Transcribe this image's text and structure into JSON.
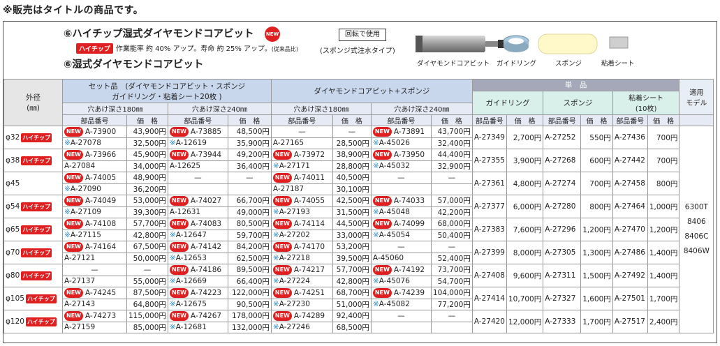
{
  "notice": "※販売はタイトルの商品です。",
  "header": {
    "title1": "⑥ハイチップ湿式ダイヤモンドコアビット",
    "new_badge": "NEW",
    "rotate_label": "回転で使用",
    "hc_label": "ハイチップ",
    "subtitle": "作業能率 約 40% アップ。寿命 約 25% アップ。",
    "subtitle_note": "(従来品比)",
    "sponge_note": "(スポンジ式注水タイプ)",
    "title2": "⑥湿式ダイヤモンドコアビット",
    "images": [
      "ダイヤモンドコアビット",
      "ガイドリング",
      "スポンジ",
      "粘着シート"
    ]
  },
  "table": {
    "h_outer": "外径",
    "h_outer_unit": "(㎜)",
    "h_set": "セット品",
    "h_set_desc1": "(ダイヤモンドコアビット・スポンジ",
    "h_set_desc2": "ガイドリング・粘着シート20枚 )",
    "h_dia_sponge": "ダイヤモンドコアビット+スポンジ",
    "h_single": "単　品",
    "h_guide": "ガイドリング",
    "h_sponge": "スポンジ",
    "h_sheet1": "粘着シート",
    "h_sheet2": "(10枚)",
    "h_model1": "適用",
    "h_model2": "モデル",
    "h_depth180": "穴あけ深さ180㎜",
    "h_depth240": "穴あけ深さ240㎜",
    "h_part": "部品番号",
    "h_price": "価　格",
    "models": [
      "6300T",
      "8406",
      "8406C",
      "8406W"
    ],
    "rows": [
      {
        "dia": "φ32",
        "hc": "ハイチップ",
        "a": [
          [
            "NEW",
            "A-73900",
            "43,900円"
          ],
          [
            "NEW",
            "A-73885",
            "48,500円"
          ],
          [
            "",
            "—",
            "—"
          ],
          [
            "NEW",
            "A-73891",
            "43,700円"
          ]
        ],
        "b": [
          [
            "※",
            "A-27078",
            "32,500円"
          ],
          [
            "※",
            "A-12619",
            "35,900円"
          ],
          [
            "",
            "A-27165",
            "28,500円"
          ],
          [
            "※",
            "A-45026",
            "32,400円"
          ]
        ],
        "single": [
          "A-27349",
          "2,700円",
          "A-27252",
          "550円",
          "A-27436",
          "700円"
        ]
      },
      {
        "dia": "φ38",
        "hc": "ハイチップ",
        "a": [
          [
            "NEW",
            "A-73966",
            "45,900円"
          ],
          [
            "NEW",
            "A-73944",
            "49,200円"
          ],
          [
            "NEW",
            "A-73972",
            "38,900円"
          ],
          [
            "NEW",
            "A-73950",
            "44,400円"
          ]
        ],
        "b": [
          [
            "",
            "A-27084",
            "34,000円"
          ],
          [
            "",
            "A-12625",
            "36,400円"
          ],
          [
            "※",
            "A-27171",
            "28,800円"
          ],
          [
            "※",
            "A-45032",
            "32,900円"
          ]
        ],
        "single": [
          "A-27355",
          "3,900円",
          "A-27268",
          "600円",
          "A-27442",
          "700円"
        ]
      },
      {
        "dia": "φ45",
        "hc": "",
        "a": [
          [
            "NEW",
            "A-74005",
            "48,900円"
          ],
          [
            "",
            "—",
            "—"
          ],
          [
            "NEW",
            "A-74011",
            "40,500円"
          ],
          [
            "",
            "—",
            "—"
          ]
        ],
        "b": [
          [
            "※",
            "A-27090",
            "36,200円"
          ],
          [
            "",
            "",
            ""
          ],
          [
            "",
            "A-27187",
            "30,100円"
          ],
          [
            "",
            "",
            ""
          ]
        ],
        "single": [
          "A-27361",
          "4,800円",
          "A-27274",
          "700円",
          "A-27458",
          "800円"
        ]
      },
      {
        "dia": "φ54",
        "hc": "ハイチップ",
        "a": [
          [
            "NEW",
            "A-74049",
            "53,000円"
          ],
          [
            "NEW",
            "A-74027",
            "66,700円"
          ],
          [
            "NEW",
            "A-74055",
            "42,500円"
          ],
          [
            "NEW",
            "A-74033",
            "57,000円"
          ]
        ],
        "b": [
          [
            "※",
            "A-27109",
            "39,300円"
          ],
          [
            "",
            "A-12631",
            "49,000円"
          ],
          [
            "※",
            "A-27193",
            "31,500円"
          ],
          [
            "※",
            "A-45048",
            "42,200円"
          ]
        ],
        "single": [
          "A-27377",
          "6,000円",
          "A-27280",
          "800円",
          "A-27464",
          "1,000円"
        ]
      },
      {
        "dia": "φ65",
        "hc": "ハイチップ",
        "a": [
          [
            "NEW",
            "A-74108",
            "57,700円"
          ],
          [
            "NEW",
            "A-74083",
            "80,500円"
          ],
          [
            "NEW",
            "A-74114",
            "44,500円"
          ],
          [
            "NEW",
            "A-74099",
            "68,000円"
          ]
        ],
        "b": [
          [
            "※",
            "A-27115",
            "42,800円"
          ],
          [
            "※",
            "A-12647",
            "59,700円"
          ],
          [
            "※",
            "A-27202",
            "33,000円"
          ],
          [
            "※",
            "A-45054",
            "50,400円"
          ]
        ],
        "single": [
          "A-27383",
          "7,600円",
          "A-27296",
          "1,200円",
          "A-27470",
          "1,200円"
        ]
      },
      {
        "dia": "φ70",
        "hc": "ハイチップ",
        "a": [
          [
            "NEW",
            "A-74164",
            "67,500円"
          ],
          [
            "NEW",
            "A-74142",
            "84,200円"
          ],
          [
            "NEW",
            "A-74170",
            "53,200円"
          ],
          [
            "",
            "—",
            "—"
          ]
        ],
        "b": [
          [
            "",
            "A-27121",
            "50,000円"
          ],
          [
            "※",
            "A-12653",
            "62,500円"
          ],
          [
            "※",
            "A-27218",
            "39,500円"
          ],
          [
            "",
            "A-45060",
            "52,400円"
          ]
        ],
        "single": [
          "A-27399",
          "8,000円",
          "A-27305",
          "1,300円",
          "A-27486",
          "1,400円"
        ]
      },
      {
        "dia": "φ80",
        "hc": "ハイチップ",
        "a": [
          [
            "",
            "—",
            "—"
          ],
          [
            "NEW",
            "A-74186",
            "89,500円"
          ],
          [
            "NEW",
            "A-74217",
            "57,700円"
          ],
          [
            "NEW",
            "A-74192",
            "73,700円"
          ]
        ],
        "b": [
          [
            "",
            "A-27137",
            "55,000円"
          ],
          [
            "※",
            "A-12669",
            "66,400円"
          ],
          [
            "※",
            "A-27224",
            "42,800円"
          ],
          [
            "※",
            "A-45076",
            "54,700円"
          ]
        ],
        "single": [
          "A-27408",
          "9,600円",
          "A-27311",
          "1,500円",
          "A-27492",
          "1,400円"
        ]
      },
      {
        "dia": "φ105",
        "hc": "ハイチップ",
        "a": [
          [
            "NEW",
            "A-74245",
            "87,500円"
          ],
          [
            "NEW",
            "A-74223",
            "122,000円"
          ],
          [
            "NEW",
            "A-74251",
            "68,700円"
          ],
          [
            "NEW",
            "A-74239",
            "104,000円"
          ]
        ],
        "b": [
          [
            "",
            "A-27143",
            "64,800円"
          ],
          [
            "※",
            "A-12675",
            "90,500円"
          ],
          [
            "※",
            "A-27230",
            "51,000円"
          ],
          [
            "※",
            "A-45082",
            "77,200円"
          ]
        ],
        "single": [
          "A-27414",
          "10,700円",
          "A-27327",
          "1,600円",
          "A-27501",
          "1,700円"
        ]
      },
      {
        "dia": "φ120",
        "hc": "ハイチップ",
        "a": [
          [
            "NEW",
            "A-74273",
            "115,000円"
          ],
          [
            "NEW",
            "A-74267",
            "178,000円"
          ],
          [
            "NEW",
            "A-74289",
            "92,400円"
          ],
          [
            "",
            "—",
            "—"
          ]
        ],
        "b": [
          [
            "",
            "A-27159",
            "85,000円"
          ],
          [
            "※",
            "A-12681",
            "132,000円"
          ],
          [
            "※",
            "A-27246",
            "68,500円"
          ],
          [
            "",
            "",
            ""
          ]
        ],
        "single": [
          "A-27420",
          "12,000円",
          "A-27333",
          "1,700円",
          "A-27517",
          "2,400円"
        ]
      }
    ]
  }
}
